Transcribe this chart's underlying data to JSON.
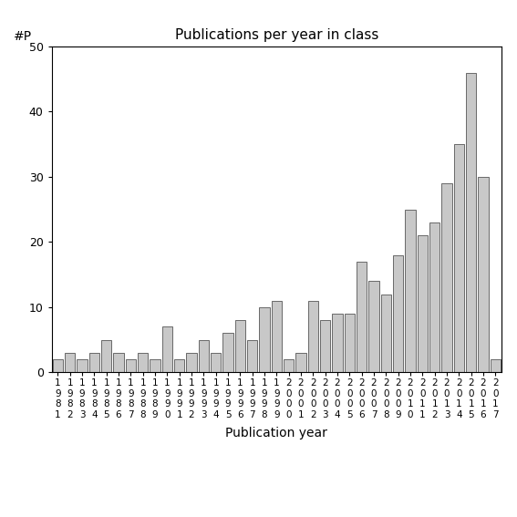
{
  "title": "Publications per year in class",
  "xlabel": "Publication year",
  "ylabel": "#P",
  "bar_color": "#c8c8c8",
  "bar_edgecolor": "#555555",
  "background_color": "#ffffff",
  "ylim": [
    0,
    50
  ],
  "yticks": [
    0,
    10,
    20,
    30,
    40,
    50
  ],
  "years": [
    1981,
    1982,
    1983,
    1984,
    1985,
    1986,
    1987,
    1988,
    1989,
    1990,
    1991,
    1992,
    1993,
    1994,
    1995,
    1996,
    1997,
    1998,
    1999,
    2000,
    2001,
    2002,
    2003,
    2004,
    2005,
    2006,
    2007,
    2008,
    2009,
    2010,
    2011,
    2012,
    2013,
    2014,
    2015,
    2016,
    2017
  ],
  "values": [
    2,
    3,
    2,
    3,
    5,
    3,
    2,
    3,
    2,
    7,
    2,
    3,
    5,
    3,
    6,
    8,
    5,
    10,
    11,
    2,
    3,
    11,
    8,
    9,
    9,
    17,
    14,
    12,
    18,
    25,
    21,
    23,
    29,
    35,
    46,
    30,
    2
  ]
}
